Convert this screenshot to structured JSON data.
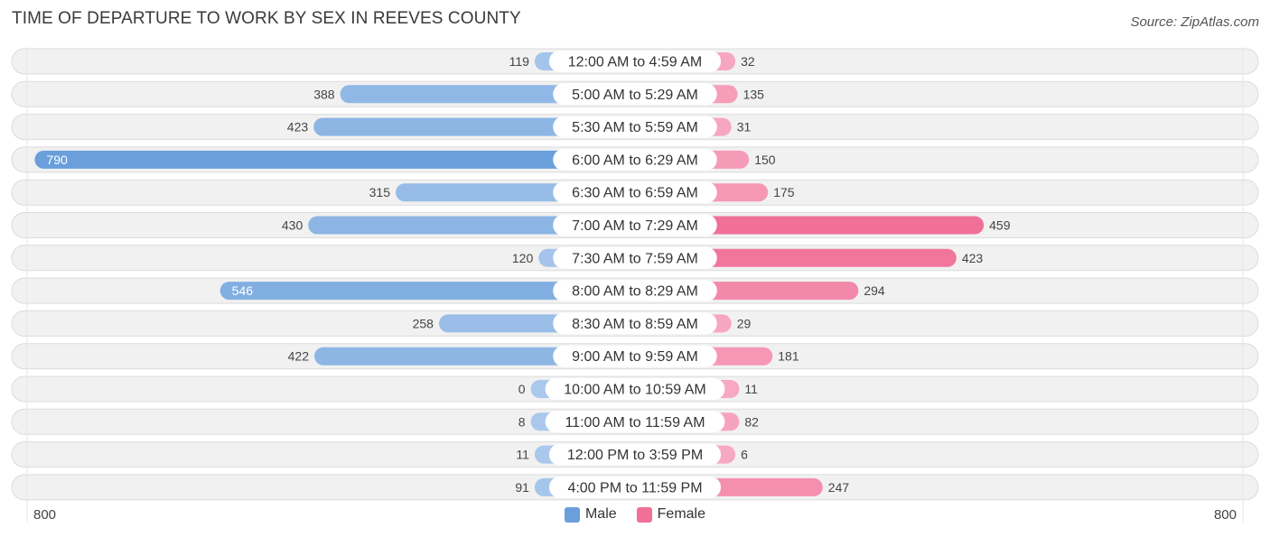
{
  "header": {
    "title": "TIME OF DEPARTURE TO WORK BY SEX IN REEVES COUNTY",
    "source": "Source: ZipAtlas.com"
  },
  "colors": {
    "male": "#6a9fdc",
    "male_light": "#a9c8ec",
    "female": "#f07098",
    "female_light": "#f7a8c2",
    "row_bg": "#f1f1f1",
    "row_border": "#dcdcdc"
  },
  "chart_data": {
    "type": "bar",
    "orientation": "horizontal-diverging",
    "title": "TIME OF DEPARTURE TO WORK BY SEX IN REEVES COUNTY",
    "categories": [
      "12:00 AM to 4:59 AM",
      "5:00 AM to 5:29 AM",
      "5:30 AM to 5:59 AM",
      "6:00 AM to 6:29 AM",
      "6:30 AM to 6:59 AM",
      "7:00 AM to 7:29 AM",
      "7:30 AM to 7:59 AM",
      "8:00 AM to 8:29 AM",
      "8:30 AM to 8:59 AM",
      "9:00 AM to 9:59 AM",
      "10:00 AM to 10:59 AM",
      "11:00 AM to 11:59 AM",
      "12:00 PM to 3:59 PM",
      "4:00 PM to 11:59 PM"
    ],
    "series": [
      {
        "name": "Male",
        "values": [
          119,
          388,
          423,
          790,
          315,
          430,
          120,
          546,
          258,
          422,
          0,
          8,
          11,
          91
        ]
      },
      {
        "name": "Female",
        "values": [
          32,
          135,
          31,
          150,
          175,
          459,
          423,
          294,
          29,
          181,
          11,
          82,
          6,
          247
        ]
      }
    ],
    "xlim": [
      -800,
      800
    ],
    "axis_min_label": "800",
    "axis_max_label": "800",
    "legend": [
      "Male",
      "Female"
    ],
    "legend_position": "bottom-center"
  }
}
